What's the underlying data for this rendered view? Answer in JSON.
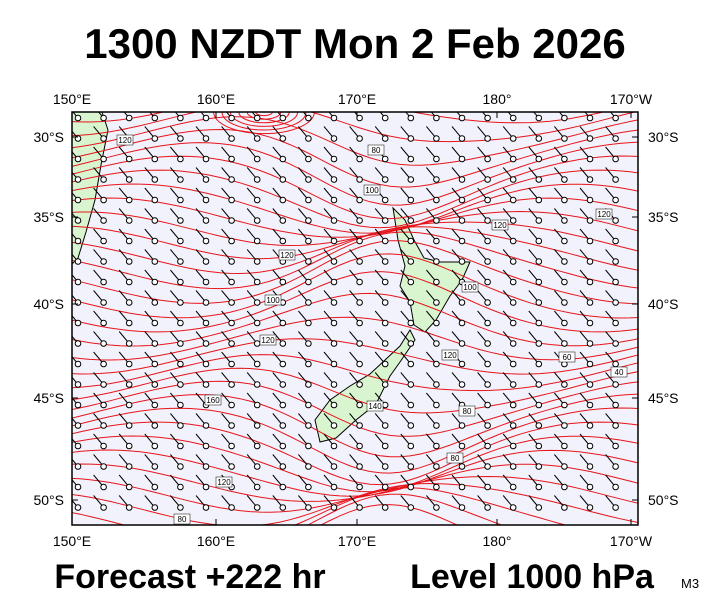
{
  "title": "1300 NZDT Mon 2 Feb 2026",
  "map": {
    "top_labels": [
      "150°E",
      "160°E",
      "170°E",
      "180°",
      "170°W"
    ],
    "bottom_labels": [
      "150°E",
      "160°E",
      "170°E",
      "180°",
      "170°W"
    ],
    "left_labels": [
      "30°S",
      "35°S",
      "40°S",
      "45°S",
      "50°S"
    ],
    "right_labels": [
      "30°S",
      "35°S",
      "40°S",
      "45°S",
      "50°S"
    ],
    "contour_labels": [
      "120",
      "80",
      "100",
      "120",
      "120",
      "120",
      "100",
      "100",
      "120",
      "120",
      "140",
      "160",
      "60",
      "40",
      "80",
      "80",
      "120",
      "80"
    ]
  },
  "footer": {
    "forecast": "Forecast +222 hr",
    "level": "Level 1000 hPa",
    "model": "M3"
  }
}
